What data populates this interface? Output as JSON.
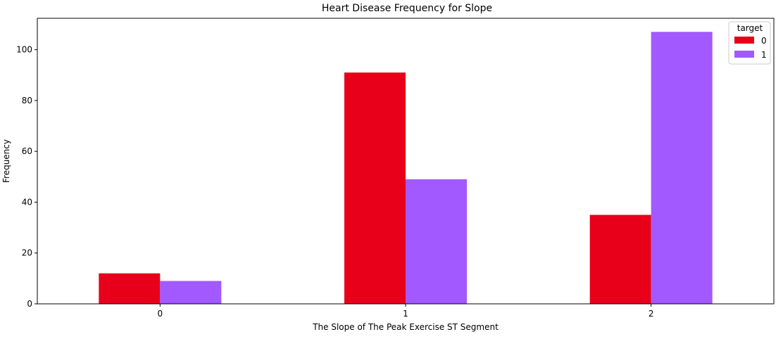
{
  "chart_data": {
    "type": "bar",
    "title": "Heart Disease Frequency for Slope",
    "xlabel": "The Slope of The Peak Exercise ST Segment",
    "ylabel": "Frequency",
    "categories": [
      "0",
      "1",
      "2"
    ],
    "series": [
      {
        "name": "0",
        "values": [
          12,
          91,
          35
        ],
        "color": "#e8001b"
      },
      {
        "name": "1",
        "values": [
          9,
          49,
          107
        ],
        "color": "#a259ff"
      }
    ],
    "ylim": [
      0,
      112.35
    ],
    "yticks": [
      0,
      20,
      40,
      60,
      80,
      100
    ],
    "legend": {
      "title": "target",
      "placement": "top-right"
    },
    "grid": false
  }
}
